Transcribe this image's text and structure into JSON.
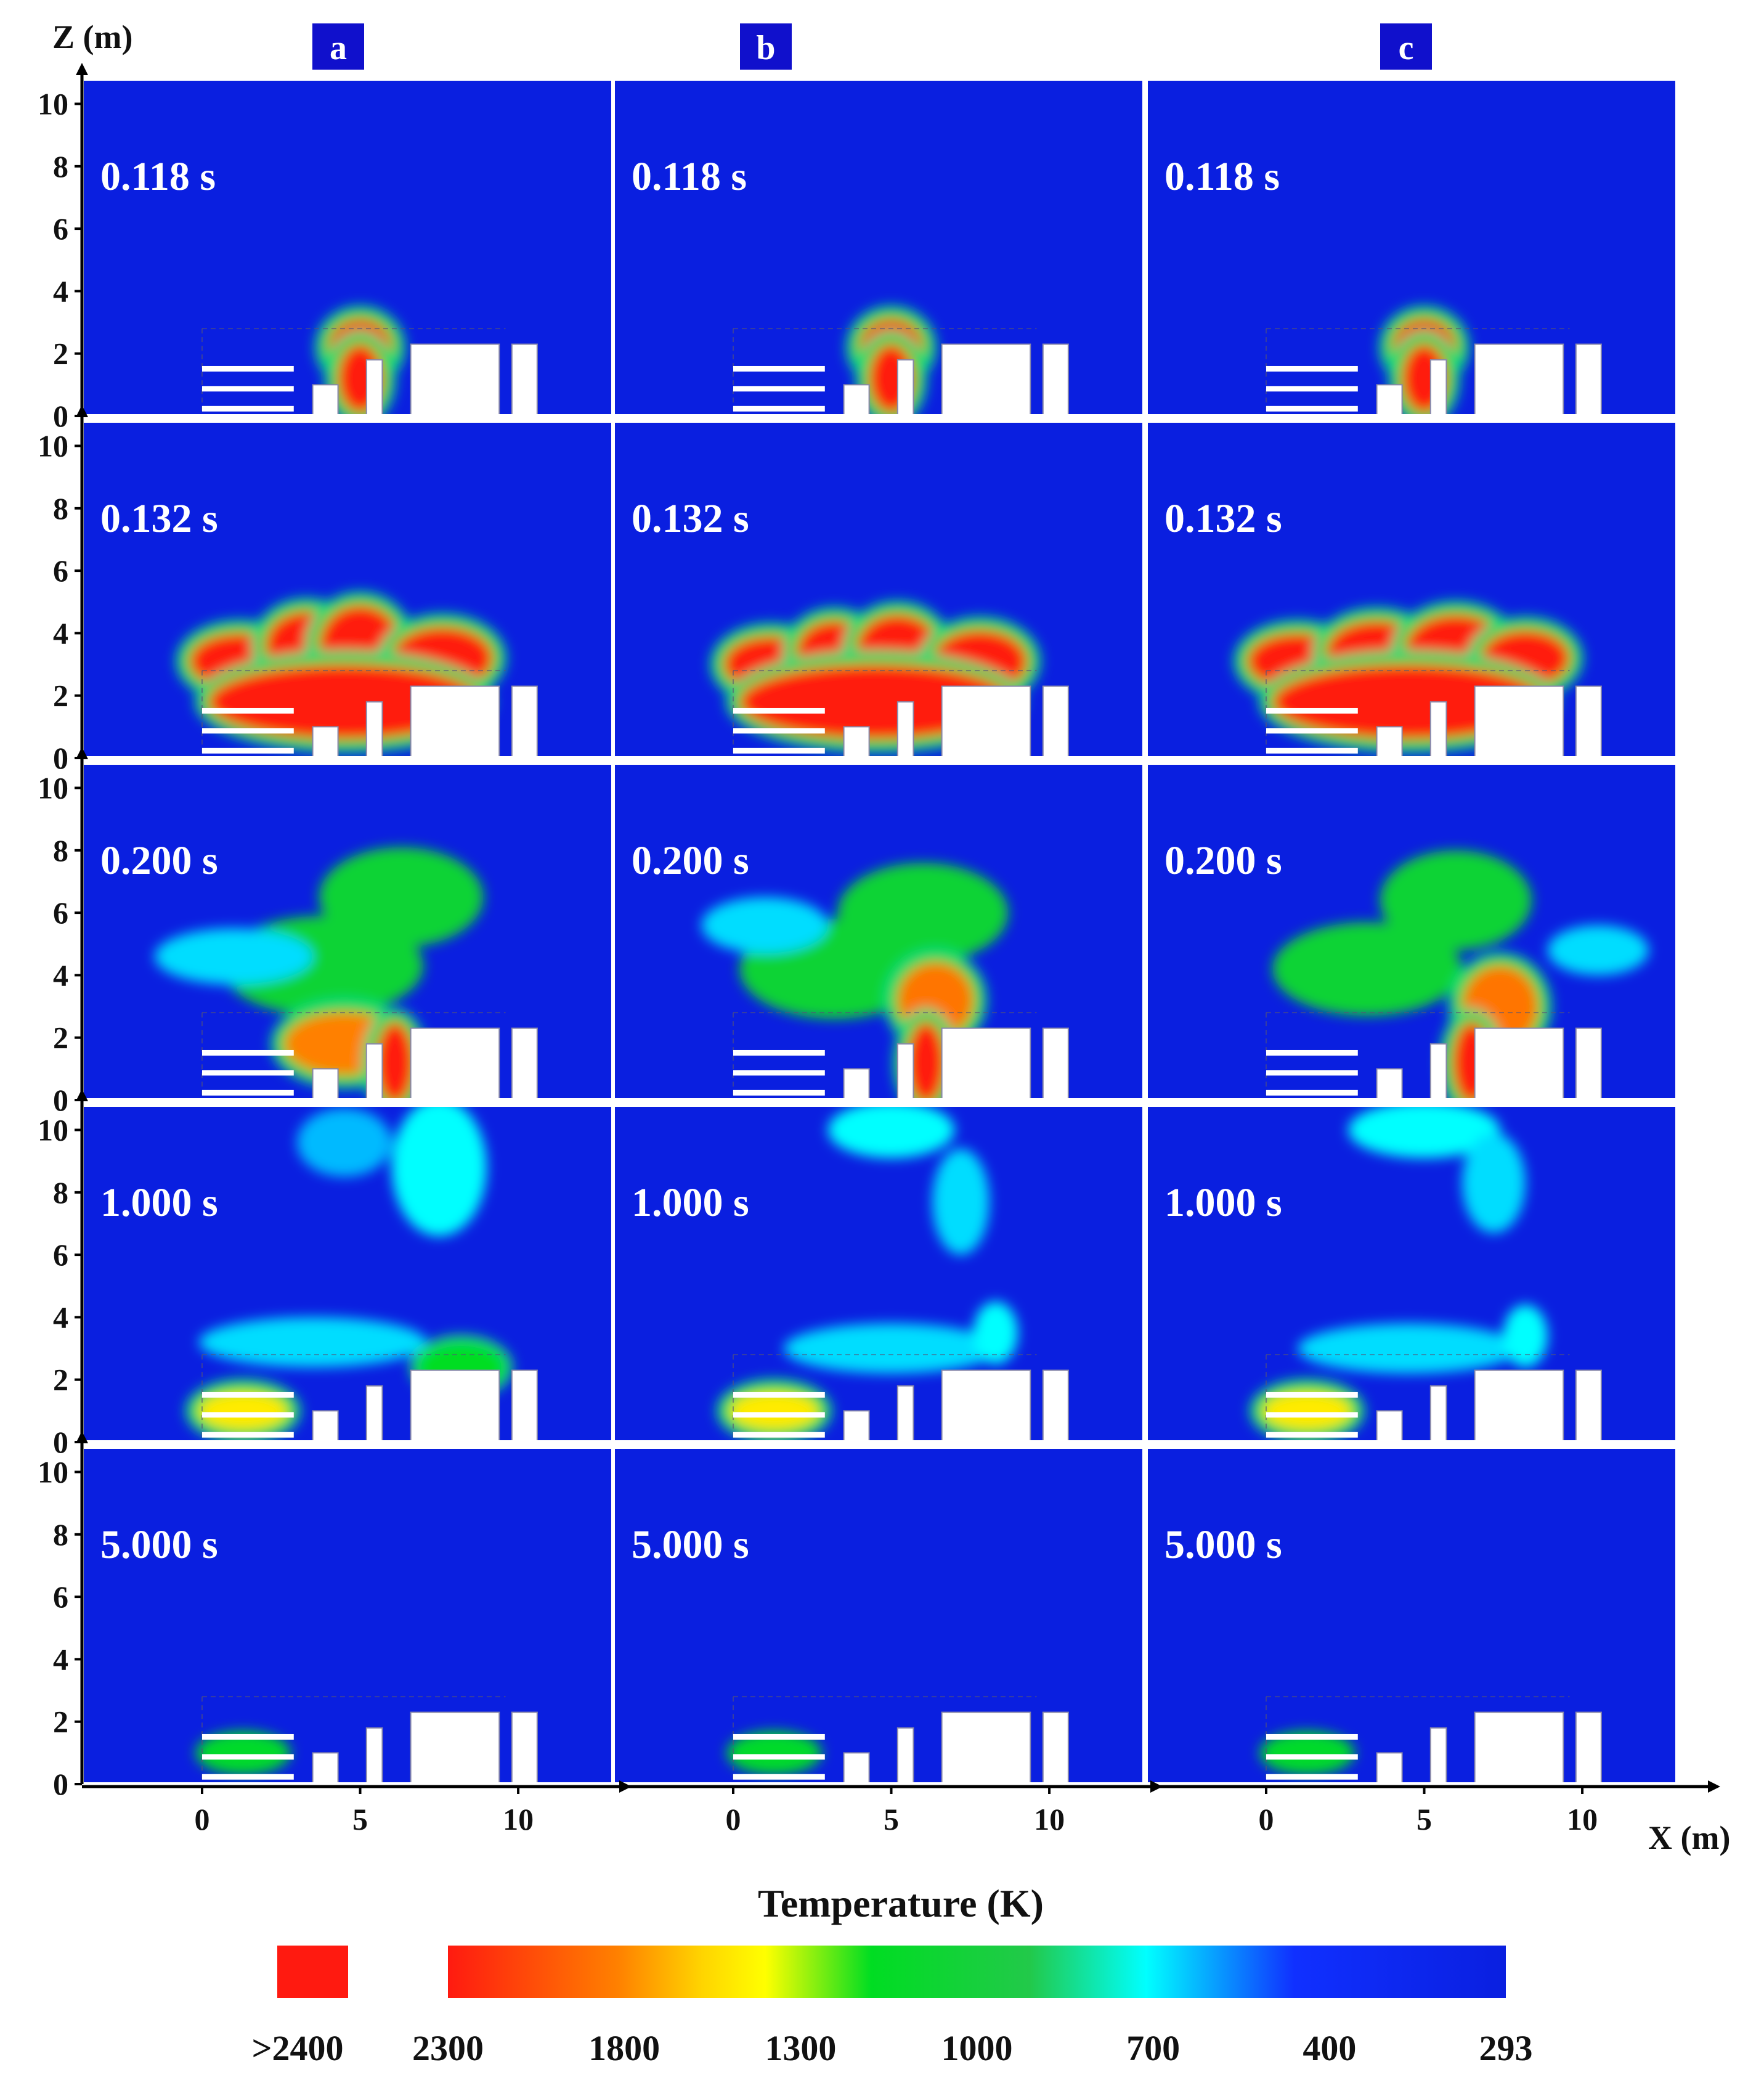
{
  "chart_data": {
    "type": "heatmap",
    "description_units": "Temperature field snapshots, X (m) vs Z (m)",
    "xlabel": "X (m)",
    "ylabel": "Z (m)",
    "x_ticks": [
      "0",
      "5",
      "10"
    ],
    "y_ticks": [
      "0",
      "2",
      "4",
      "6",
      "8",
      "10"
    ],
    "xlim": [
      -3.8,
      13
    ],
    "ylim": [
      0,
      10.8
    ],
    "columns": [
      "a",
      "b",
      "c"
    ],
    "times": [
      "0.118 s",
      "0.132 s",
      "0.200 s",
      "1.000 s",
      "5.000 s"
    ],
    "colorbar": {
      "title": "Temperature (K)",
      "overflow_label": ">2400",
      "overflow_color": "#ff1a10",
      "tick_labels": [
        "2300",
        "1800",
        "1300",
        "1000",
        "700",
        "400",
        "293"
      ],
      "stops": [
        {
          "value": 2300,
          "color": "#ff1a10"
        },
        {
          "value": 1800,
          "color": "#ff9a00"
        },
        {
          "value": 1550,
          "color": "#ffff00"
        },
        {
          "value": 1300,
          "color": "#00dd22"
        },
        {
          "value": 1000,
          "color": "#22c94a"
        },
        {
          "value": 700,
          "color": "#00ffff"
        },
        {
          "value": 400,
          "color": "#1030ff"
        },
        {
          "value": 293,
          "color": "#0a1fe0"
        }
      ]
    },
    "background_color": "#0a1fe0",
    "obstacles": [
      {
        "name": "slatted-stack",
        "x": [
          0,
          2.9
        ],
        "z": [
          0,
          1.6
        ],
        "slats": 3
      },
      {
        "name": "small-block",
        "x": [
          3.5,
          4.3
        ],
        "z": [
          0,
          1.0
        ]
      },
      {
        "name": "thin-wall",
        "x": [
          5.2,
          5.7
        ],
        "z": [
          0,
          1.8
        ]
      },
      {
        "name": "large-block",
        "x": [
          6.6,
          9.4
        ],
        "z": [
          0,
          2.3
        ]
      },
      {
        "name": "right-post",
        "x": [
          9.8,
          10.6
        ],
        "z": [
          0,
          2.3
        ]
      }
    ],
    "panels": [
      {
        "row": 0,
        "col": "a",
        "time": "0.118 s",
        "blobs": [
          {
            "x": 5.0,
            "z": 2.2,
            "rx": 1.0,
            "rz": 0.9,
            "t": 2400
          },
          {
            "x": 5.0,
            "z": 1.2,
            "rx": 0.7,
            "rz": 1.1,
            "t": 2400
          }
        ]
      },
      {
        "row": 0,
        "col": "b",
        "time": "0.118 s",
        "blobs": [
          {
            "x": 5.0,
            "z": 2.2,
            "rx": 1.0,
            "rz": 0.9,
            "t": 2400
          },
          {
            "x": 5.0,
            "z": 1.2,
            "rx": 0.7,
            "rz": 1.1,
            "t": 2400
          }
        ]
      },
      {
        "row": 0,
        "col": "c",
        "time": "0.118 s",
        "blobs": [
          {
            "x": 5.0,
            "z": 2.2,
            "rx": 1.0,
            "rz": 0.9,
            "t": 2400
          },
          {
            "x": 5.0,
            "z": 1.2,
            "rx": 0.7,
            "rz": 1.1,
            "t": 2400
          }
        ]
      },
      {
        "row": 1,
        "col": "a",
        "time": "0.132 s",
        "blobs": [
          {
            "x": 1.2,
            "z": 3.1,
            "rx": 1.6,
            "rz": 0.9,
            "t": 2300
          },
          {
            "x": 3.3,
            "z": 3.6,
            "rx": 1.3,
            "rz": 1.1,
            "t": 2400
          },
          {
            "x": 5.0,
            "z": 3.6,
            "rx": 1.3,
            "rz": 1.3,
            "t": 2400
          },
          {
            "x": 7.6,
            "z": 3.2,
            "rx": 1.6,
            "rz": 1.0,
            "t": 2300
          },
          {
            "x": 4.5,
            "z": 1.8,
            "rx": 4.3,
            "rz": 1.2,
            "t": 2300
          }
        ]
      },
      {
        "row": 1,
        "col": "b",
        "time": "0.132 s",
        "blobs": [
          {
            "x": 1.2,
            "z": 3.0,
            "rx": 1.5,
            "rz": 0.9,
            "t": 2300
          },
          {
            "x": 3.2,
            "z": 3.4,
            "rx": 1.2,
            "rz": 1.0,
            "t": 2400
          },
          {
            "x": 5.2,
            "z": 3.5,
            "rx": 1.3,
            "rz": 1.1,
            "t": 2400
          },
          {
            "x": 7.8,
            "z": 3.1,
            "rx": 1.5,
            "rz": 1.0,
            "t": 2300
          },
          {
            "x": 4.5,
            "z": 1.8,
            "rx": 4.3,
            "rz": 1.2,
            "t": 2300
          }
        ]
      },
      {
        "row": 1,
        "col": "c",
        "time": "0.132 s",
        "blobs": [
          {
            "x": 1.0,
            "z": 3.1,
            "rx": 1.6,
            "rz": 0.9,
            "t": 2300
          },
          {
            "x": 3.5,
            "z": 3.4,
            "rx": 1.6,
            "rz": 1.0,
            "t": 2400
          },
          {
            "x": 6.0,
            "z": 3.5,
            "rx": 1.6,
            "rz": 1.1,
            "t": 2400
          },
          {
            "x": 8.2,
            "z": 3.2,
            "rx": 1.4,
            "rz": 0.9,
            "t": 2300
          },
          {
            "x": 4.5,
            "z": 1.8,
            "rx": 4.3,
            "rz": 1.2,
            "t": 2300
          }
        ]
      },
      {
        "row": 2,
        "col": "a",
        "time": "0.200 s",
        "blobs": [
          {
            "x": 6.3,
            "z": 6.5,
            "rx": 2.6,
            "rz": 1.6,
            "t": 1150
          },
          {
            "x": 3.8,
            "z": 4.3,
            "rx": 3.2,
            "rz": 1.6,
            "t": 1150
          },
          {
            "x": 1.0,
            "z": 4.6,
            "rx": 2.5,
            "rz": 0.9,
            "t": 650
          },
          {
            "x": 4.5,
            "z": 1.8,
            "rx": 1.9,
            "rz": 1.0,
            "t": 1900
          },
          {
            "x": 6.1,
            "z": 1.2,
            "rx": 0.6,
            "rz": 1.3,
            "t": 2400
          }
        ]
      },
      {
        "row": 2,
        "col": "b",
        "time": "0.200 s",
        "blobs": [
          {
            "x": 6.0,
            "z": 6.0,
            "rx": 2.7,
            "rz": 1.6,
            "t": 1150
          },
          {
            "x": 3.2,
            "z": 4.2,
            "rx": 3.0,
            "rz": 1.6,
            "t": 1150
          },
          {
            "x": 6.4,
            "z": 3.2,
            "rx": 1.2,
            "rz": 1.2,
            "t": 1950
          },
          {
            "x": 6.1,
            "z": 1.2,
            "rx": 0.6,
            "rz": 1.3,
            "t": 2400
          },
          {
            "x": 1.0,
            "z": 5.6,
            "rx": 2.0,
            "rz": 0.9,
            "t": 650
          }
        ]
      },
      {
        "row": 2,
        "col": "c",
        "time": "0.200 s",
        "blobs": [
          {
            "x": 6.0,
            "z": 6.4,
            "rx": 2.4,
            "rz": 1.6,
            "t": 1150
          },
          {
            "x": 3.2,
            "z": 4.2,
            "rx": 3.0,
            "rz": 1.5,
            "t": 1150
          },
          {
            "x": 7.4,
            "z": 3.0,
            "rx": 1.2,
            "rz": 1.3,
            "t": 1950
          },
          {
            "x": 6.5,
            "z": 1.2,
            "rx": 0.6,
            "rz": 1.3,
            "t": 2400
          },
          {
            "x": 10.5,
            "z": 4.8,
            "rx": 1.6,
            "rz": 0.8,
            "t": 650
          }
        ]
      },
      {
        "row": 3,
        "col": "a",
        "time": "1.000 s",
        "blobs": [
          {
            "x": 7.5,
            "z": 8.8,
            "rx": 1.5,
            "rz": 2.2,
            "t": 700
          },
          {
            "x": 4.5,
            "z": 9.6,
            "rx": 1.5,
            "rz": 1.1,
            "t": 600
          },
          {
            "x": 3.5,
            "z": 3.2,
            "rx": 3.6,
            "rz": 0.8,
            "t": 650
          },
          {
            "x": 8.2,
            "z": 2.4,
            "rx": 1.2,
            "rz": 0.6,
            "t": 1300
          },
          {
            "x": 1.3,
            "z": 1.0,
            "rx": 1.4,
            "rz": 0.6,
            "t": 1600
          }
        ]
      },
      {
        "row": 3,
        "col": "b",
        "time": "1.000 s",
        "blobs": [
          {
            "x": 5.0,
            "z": 10.0,
            "rx": 2.0,
            "rz": 0.9,
            "t": 700
          },
          {
            "x": 7.2,
            "z": 7.7,
            "rx": 0.9,
            "rz": 1.7,
            "t": 650
          },
          {
            "x": 5.0,
            "z": 3.0,
            "rx": 3.4,
            "rz": 0.8,
            "t": 650
          },
          {
            "x": 8.3,
            "z": 3.5,
            "rx": 0.7,
            "rz": 1.0,
            "t": 700
          },
          {
            "x": 1.3,
            "z": 1.0,
            "rx": 1.4,
            "rz": 0.6,
            "t": 1600
          }
        ]
      },
      {
        "row": 3,
        "col": "c",
        "time": "1.000 s",
        "blobs": [
          {
            "x": 5.0,
            "z": 10.0,
            "rx": 2.4,
            "rz": 0.9,
            "t": 700
          },
          {
            "x": 7.2,
            "z": 8.3,
            "rx": 1.0,
            "rz": 1.6,
            "t": 650
          },
          {
            "x": 4.5,
            "z": 3.0,
            "rx": 3.5,
            "rz": 0.8,
            "t": 650
          },
          {
            "x": 8.2,
            "z": 3.4,
            "rx": 0.7,
            "rz": 1.0,
            "t": 700
          },
          {
            "x": 1.3,
            "z": 1.0,
            "rx": 1.4,
            "rz": 0.6,
            "t": 1600
          }
        ]
      },
      {
        "row": 4,
        "col": "a",
        "time": "5.000 s",
        "blobs": [
          {
            "x": 1.3,
            "z": 1.0,
            "rx": 1.5,
            "rz": 0.7,
            "t": 1250
          }
        ]
      },
      {
        "row": 4,
        "col": "b",
        "time": "5.000 s",
        "blobs": [
          {
            "x": 1.3,
            "z": 1.0,
            "rx": 1.5,
            "rz": 0.7,
            "t": 1250
          }
        ]
      },
      {
        "row": 4,
        "col": "c",
        "time": "5.000 s",
        "blobs": [
          {
            "x": 1.3,
            "z": 1.0,
            "rx": 1.5,
            "rz": 0.7,
            "t": 1250
          }
        ]
      }
    ]
  }
}
